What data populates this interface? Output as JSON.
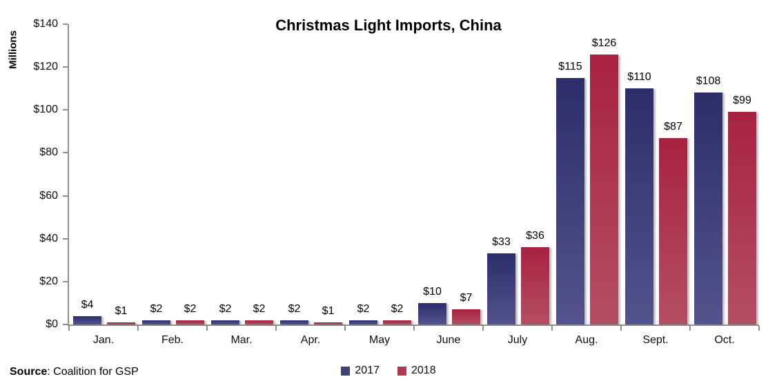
{
  "source": {
    "label": "Source",
    "rest": ": Coalition for GSP"
  },
  "axis_color": "#8e8e8e",
  "chart_data": {
    "type": "bar",
    "title": "Christmas Light Imports, China",
    "xlabel": "",
    "ylabel": "Millions",
    "categories": [
      "Jan.",
      "Feb.",
      "Mar.",
      "Apr.",
      "May",
      "June",
      "July",
      "Aug.",
      "Sept.",
      "Oct."
    ],
    "series": [
      {
        "name": "2017",
        "values": [
          4,
          2,
          2,
          2,
          2,
          10,
          33,
          115,
          110,
          108
        ],
        "labels": [
          "$4",
          "$2",
          "$2",
          "$2",
          "$2",
          "$10",
          "$33",
          "$115",
          "$110",
          "$108"
        ],
        "color_top": "#2B2E6B",
        "color_bottom": "#54538C",
        "swatch_color": "#3F4476"
      },
      {
        "name": "2018",
        "values": [
          1,
          2,
          2,
          1,
          2,
          7,
          36,
          126,
          87,
          99
        ],
        "labels": [
          "$1",
          "$2",
          "$2",
          "$1",
          "$2",
          "$7",
          "$36",
          "$126",
          "$87",
          "$99"
        ],
        "color_top": "#A82240",
        "color_bottom": "#B44E63",
        "swatch_color": "#AF3A50"
      }
    ],
    "ylim": [
      0,
      140
    ],
    "ytick_step": 20,
    "ytick_prefix": "$",
    "grid": false,
    "legend_position": "bottom-center",
    "data_labels": true
  }
}
